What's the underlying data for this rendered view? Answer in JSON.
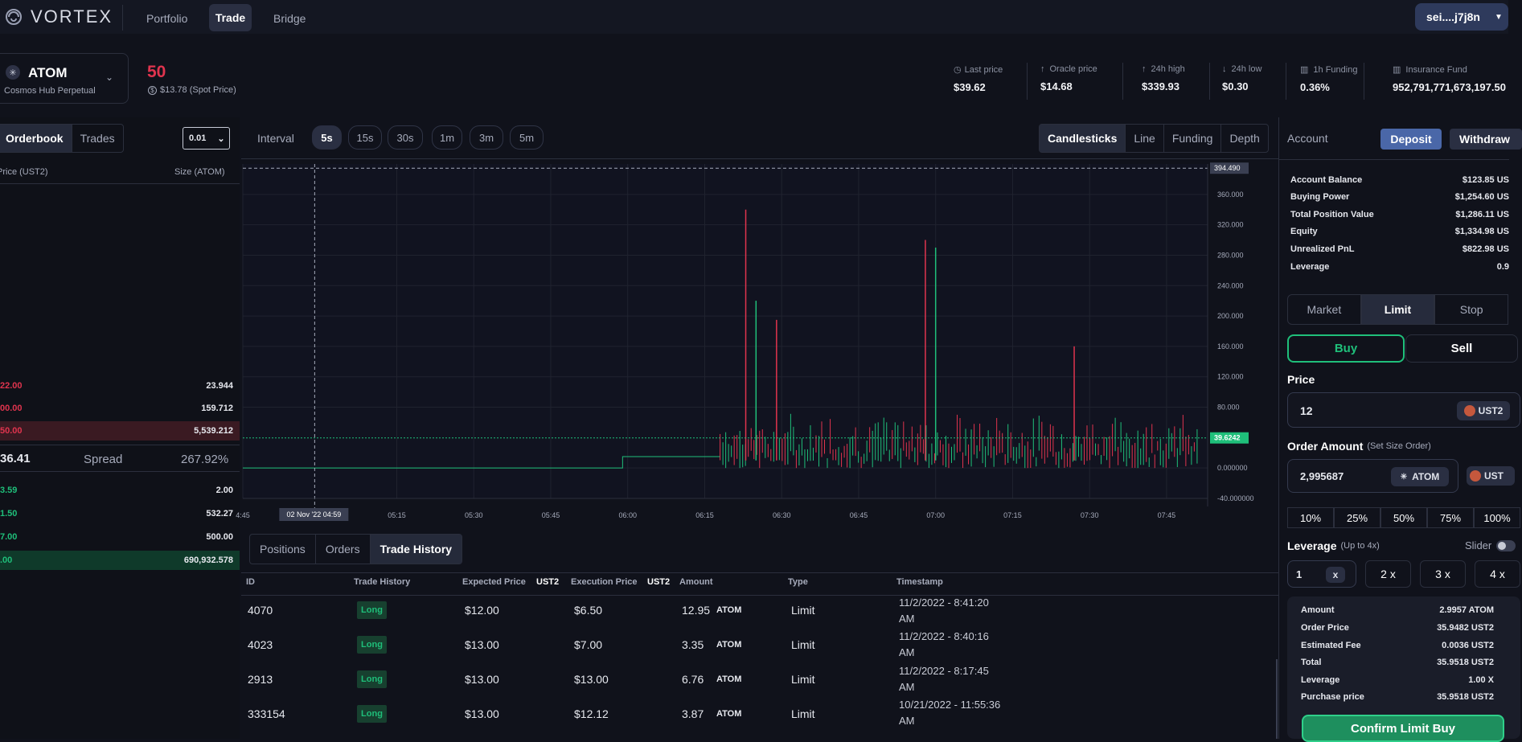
{
  "brand": {
    "name": "VORTEX"
  },
  "nav": {
    "items": [
      "Portfolio",
      "Trade",
      "Bridge"
    ],
    "active": "Trade"
  },
  "wallet": {
    "label": "sei....j7j8n"
  },
  "market": {
    "symbol": "ATOM",
    "name": "Cosmos Hub Perpetual",
    "price_big": "50",
    "spot": "$13.78 (Spot Price)"
  },
  "stats": [
    {
      "icon": "clock-icon",
      "label": "Last price",
      "value": "$39.62"
    },
    {
      "icon": "arrow-up-icon",
      "label": "Oracle price",
      "value": "$14.68"
    },
    {
      "icon": "arrow-up-icon",
      "label": "24h high",
      "value": "$339.93"
    },
    {
      "icon": "arrow-down-icon",
      "label": "24h low",
      "value": "$0.30"
    },
    {
      "icon": "bar-chart-icon",
      "label": "1h Funding",
      "value": "0.36%"
    },
    {
      "icon": "bar-chart-icon",
      "label": "Insurance Fund",
      "value": "952,791,771,673,197.50"
    }
  ],
  "orderbook": {
    "tabs": [
      "Orderbook",
      "Trades"
    ],
    "tick": "0.01",
    "col_price": "Price (UST2)",
    "col_size": "Size (ATOM)",
    "asks": [
      {
        "price": "22.00",
        "size": "23.944"
      },
      {
        "price": "00.00",
        "size": "159.712"
      },
      {
        "price": "50.00",
        "size": "5,539.212"
      }
    ],
    "mid": {
      "price": "36.41",
      "label": "Spread",
      "value": "267.92%"
    },
    "bids": [
      {
        "price": "3.59",
        "size": "2.00"
      },
      {
        "price": "1.50",
        "size": "532.27"
      },
      {
        "price": "7.00",
        "size": "500.00"
      },
      {
        "price": ".00",
        "size": "690,932.578"
      }
    ]
  },
  "chart_toolbar": {
    "interval_label": "Interval",
    "intervals": [
      "5s",
      "15s",
      "30s",
      "1m",
      "3m",
      "5m"
    ],
    "active_interval": "5s",
    "views": [
      "Candlesticks",
      "Line",
      "Funding",
      "Depth"
    ],
    "active_view": "Candlesticks"
  },
  "chart_data": {
    "type": "candlestick",
    "y_ticks": [
      "360.000",
      "320.000",
      "280.000",
      "240.000",
      "200.000",
      "160.000",
      "120.000",
      "80.000",
      "0.000000",
      "-40.000000"
    ],
    "x_ticks": [
      "4:45",
      "05:15",
      "05:30",
      "05:45",
      "06:00",
      "06:15",
      "06:30",
      "06:45",
      "07:00",
      "07:15",
      "07:30",
      "07:45"
    ],
    "crosshair_price": "394.490",
    "crosshair_time": "02 Nov '22   04:59",
    "last_price": "39.6242",
    "ylim": [
      -40,
      400
    ],
    "spikes": [
      {
        "t": "06:23",
        "high": 340,
        "dir": "down"
      },
      {
        "t": "06:25",
        "high": 220,
        "dir": "up"
      },
      {
        "t": "06:29",
        "high": 195,
        "dir": "down"
      },
      {
        "t": "06:58",
        "high": 300,
        "dir": "down"
      },
      {
        "t": "07:00",
        "high": 290,
        "dir": "up"
      },
      {
        "t": "07:27",
        "high": 160,
        "dir": "down"
      }
    ]
  },
  "bottom_tabs": {
    "items": [
      "Positions",
      "Orders",
      "Trade History"
    ],
    "active": "Trade History"
  },
  "trade_table": {
    "headers": [
      "ID",
      "Trade History",
      "Expected Price",
      "UST2",
      "Execution Price",
      "UST2",
      "Amount",
      "Type",
      "Timestamp"
    ],
    "rows": [
      {
        "id": "4070",
        "side": "Long",
        "expected": "$12.00",
        "execution": "$6.50",
        "amount": "12.95",
        "unit": "ATOM",
        "type": "Limit",
        "ts1": "11/2/2022 - 8:41:20",
        "ts2": "AM"
      },
      {
        "id": "4023",
        "side": "Long",
        "expected": "$13.00",
        "execution": "$7.00",
        "amount": "3.35",
        "unit": "ATOM",
        "type": "Limit",
        "ts1": "11/2/2022 - 8:40:16",
        "ts2": "AM"
      },
      {
        "id": "2913",
        "side": "Long",
        "expected": "$13.00",
        "execution": "$13.00",
        "amount": "6.76",
        "unit": "ATOM",
        "type": "Limit",
        "ts1": "11/2/2022 - 8:17:45",
        "ts2": "AM"
      },
      {
        "id": "333154",
        "side": "Long",
        "expected": "$13.00",
        "execution": "$12.12",
        "amount": "3.87",
        "unit": "ATOM",
        "type": "Limit",
        "ts1": "10/21/2022 - 11:55:36",
        "ts2": "AM"
      }
    ]
  },
  "account": {
    "label": "Account",
    "deposit": "Deposit",
    "withdraw": "Withdraw",
    "rows": [
      {
        "label": "Account Balance",
        "value": "$123.85 US"
      },
      {
        "label": "Buying Power",
        "value": "$1,254.60 US"
      },
      {
        "label": "Total Position Value",
        "value": "$1,286.11 US"
      },
      {
        "label": "Equity",
        "value": "$1,334.98 US"
      },
      {
        "label": "Unrealized PnL",
        "value": "$822.98 US"
      },
      {
        "label": "Leverage",
        "value": "0.9"
      }
    ]
  },
  "order_form": {
    "types": [
      "Market",
      "Limit",
      "Stop"
    ],
    "active_type": "Limit",
    "buy": "Buy",
    "sell": "Sell",
    "price_label": "Price",
    "price_value": "12",
    "price_unit": "UST2",
    "amount_label": "Order Amount",
    "amount_hint": "(Set Size Order)",
    "amount_value": "2,995687",
    "amount_unit": "ATOM",
    "amount_unit2": "UST",
    "percents": [
      "10%",
      "25%",
      "50%",
      "75%",
      "100%"
    ],
    "leverage_label": "Leverage",
    "leverage_hint": "(Up to 4x)",
    "slider_label": "Slider",
    "leverage_value": "1",
    "leverage_x": "x",
    "leverage_opts": [
      "2 x",
      "3 x",
      "4 x"
    ],
    "summary": [
      {
        "label": "Amount",
        "value": "2.9957 ATOM"
      },
      {
        "label": "Order Price",
        "value": "35.9482 UST2"
      },
      {
        "label": "Estimated Fee",
        "value": "0.0036 UST2"
      },
      {
        "label": "Total",
        "value": "35.9518 UST2"
      },
      {
        "label": "Leverage",
        "value": "1.00 X"
      },
      {
        "label": "Purchase price",
        "value": "35.9518 UST2"
      }
    ],
    "confirm": "Confirm Limit Buy"
  },
  "colors": {
    "accent_green": "#1fbf7a",
    "accent_red": "#e0344e",
    "bg": "#10121b"
  }
}
